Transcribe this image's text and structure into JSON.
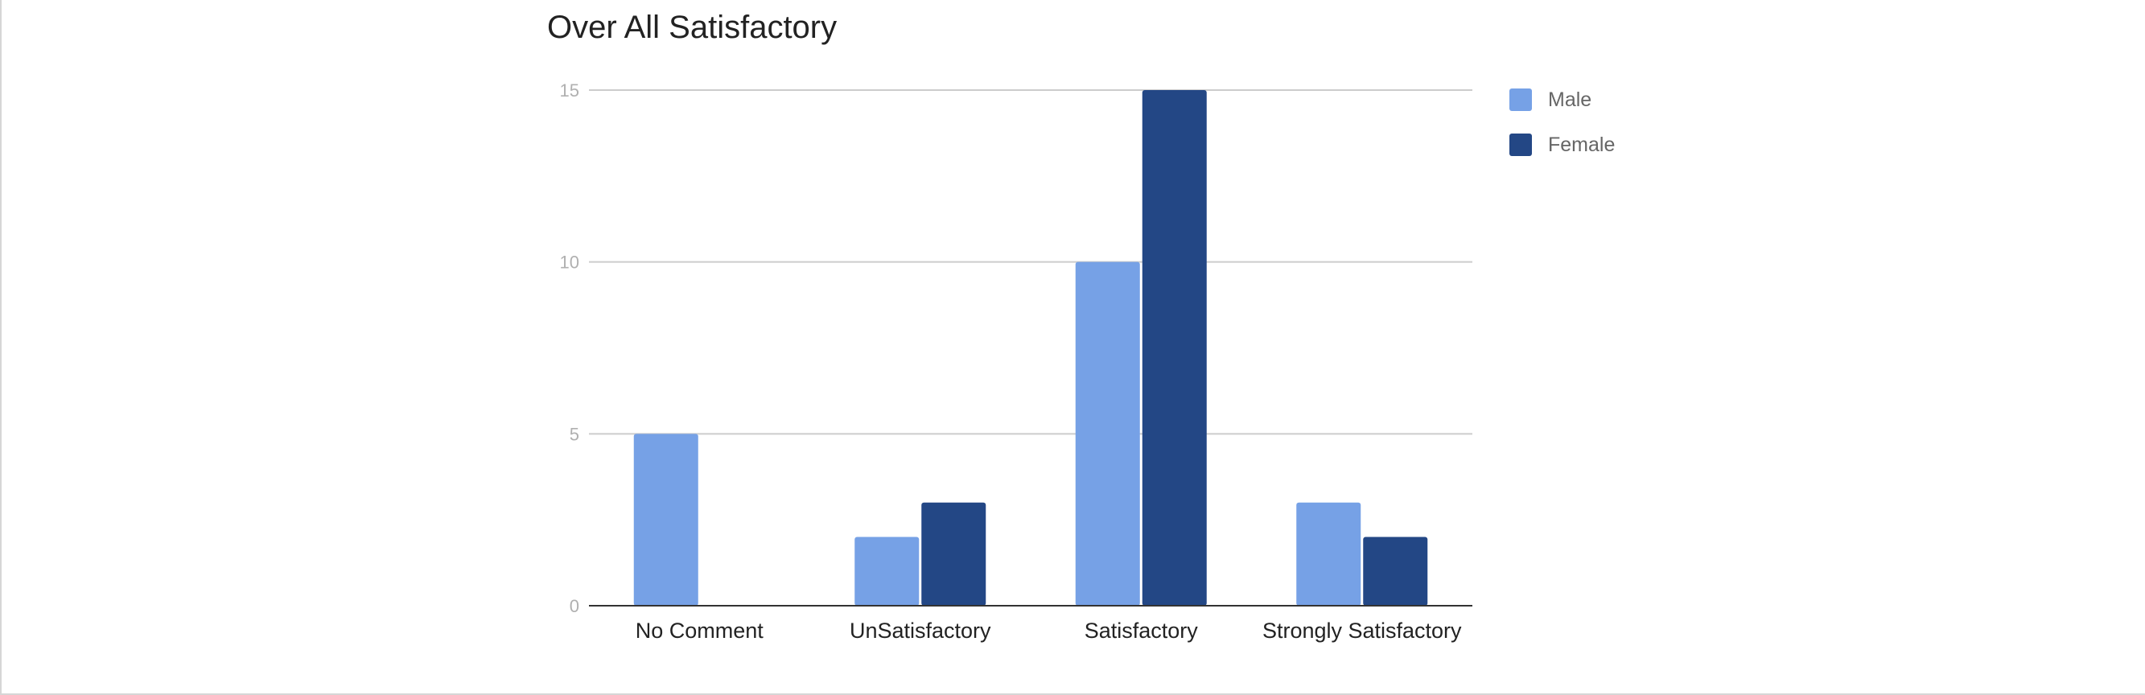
{
  "chart_data": {
    "type": "bar",
    "title": "Over All Satisfactory",
    "xlabel": "",
    "ylabel": "",
    "categories": [
      "No Comment",
      "UnSatisfactory",
      "Satisfactory",
      "Strongly Satisfactory"
    ],
    "series": [
      {
        "name": "Male",
        "values": [
          5,
          2,
          10,
          3
        ],
        "color": "#76a1e6"
      },
      {
        "name": "Female",
        "values": [
          0,
          3,
          15,
          2
        ],
        "color": "#234785"
      }
    ],
    "ylim": [
      0,
      15
    ],
    "yticks": [
      0,
      5,
      10,
      15
    ],
    "grid": true,
    "legend_position": "right"
  }
}
